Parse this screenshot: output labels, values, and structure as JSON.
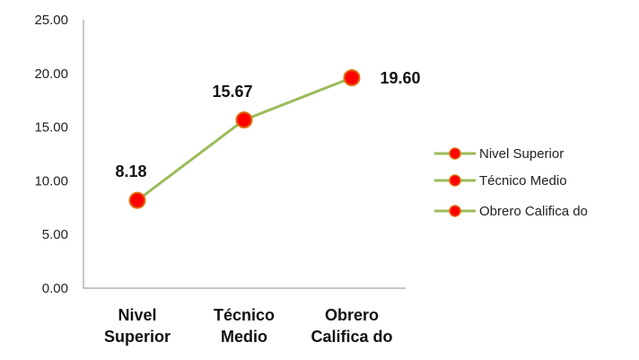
{
  "chart_data": {
    "type": "line",
    "categories": [
      [
        "Nivel",
        "Superior"
      ],
      [
        "Técnico",
        "Medio"
      ],
      [
        "Obrero",
        "Califica do"
      ]
    ],
    "values": [
      8.18,
      15.67,
      19.6
    ],
    "data_labels": [
      "8.18",
      "15.67",
      "19.60"
    ],
    "ylim": [
      0,
      25
    ],
    "yticks": [
      "0.00",
      "5.00",
      "10.00",
      "15.00",
      "20.00",
      "25.00"
    ],
    "grid": false,
    "legend": {
      "position": "right",
      "entries": [
        "Nivel Superior",
        "Técnico Medio",
        "Obrero Califica do"
      ]
    },
    "colors": {
      "line": "#9bbb59",
      "marker_fill": "#ff0000",
      "marker_edge": "#e06c0a",
      "axis": "#8c8c8c"
    }
  }
}
